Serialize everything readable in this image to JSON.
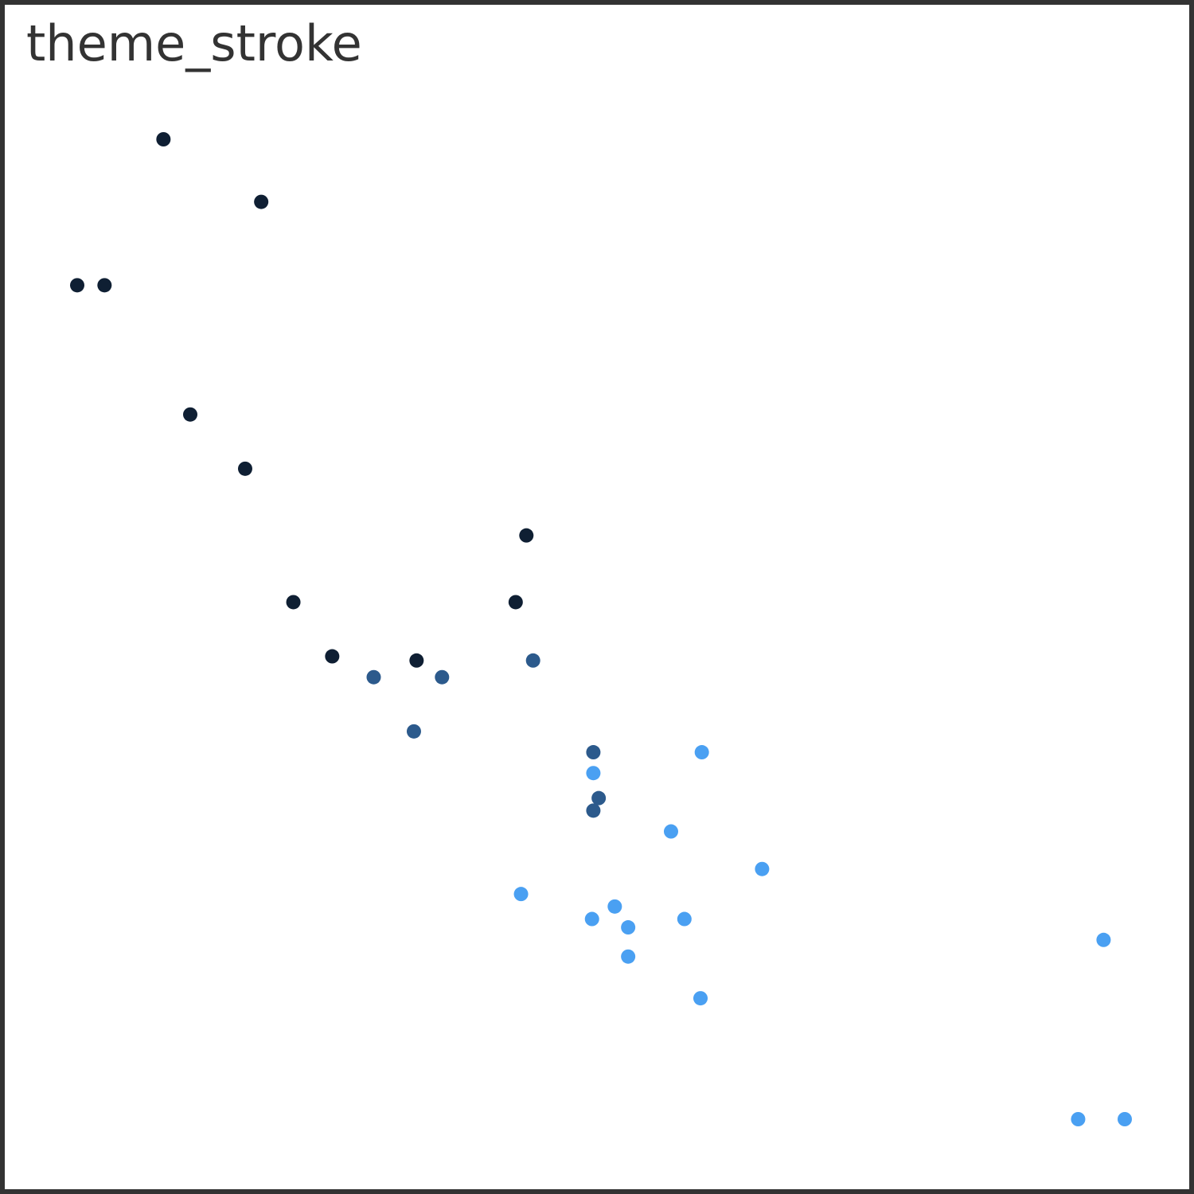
{
  "chart_data": {
    "type": "scatter",
    "title": "theme_stroke",
    "xlim": [
      1.513,
      5.424
    ],
    "ylim": [
      10.4,
      33.9
    ],
    "series": [
      {
        "color": "#0f1f33",
        "x": [
          2.32,
          3.19,
          3.15,
          2.2,
          1.615,
          1.835,
          2.465,
          1.935,
          2.14,
          1.513,
          2.78
        ],
        "values": [
          22.8,
          24.4,
          22.8,
          32.4,
          30.4,
          33.9,
          21.5,
          27.3,
          26.0,
          30.4,
          21.4
        ]
      },
      {
        "color": "#2c5a8c",
        "x": [
          2.62,
          2.875,
          3.215,
          3.46,
          3.44,
          3.44,
          2.77
        ],
        "values": [
          21.0,
          21.0,
          21.4,
          18.1,
          19.2,
          17.8,
          19.7
        ]
      },
      {
        "color": "#4aa0f2",
        "x": [
          3.44,
          3.57,
          4.07,
          3.73,
          3.78,
          5.25,
          5.424,
          5.345,
          3.52,
          3.435,
          3.84,
          3.845,
          3.17,
          3.57
        ],
        "values": [
          18.7,
          14.3,
          16.4,
          17.3,
          15.2,
          10.4,
          10.4,
          14.7,
          15.5,
          15.2,
          13.3,
          19.2,
          15.8,
          15.0
        ]
      }
    ]
  }
}
